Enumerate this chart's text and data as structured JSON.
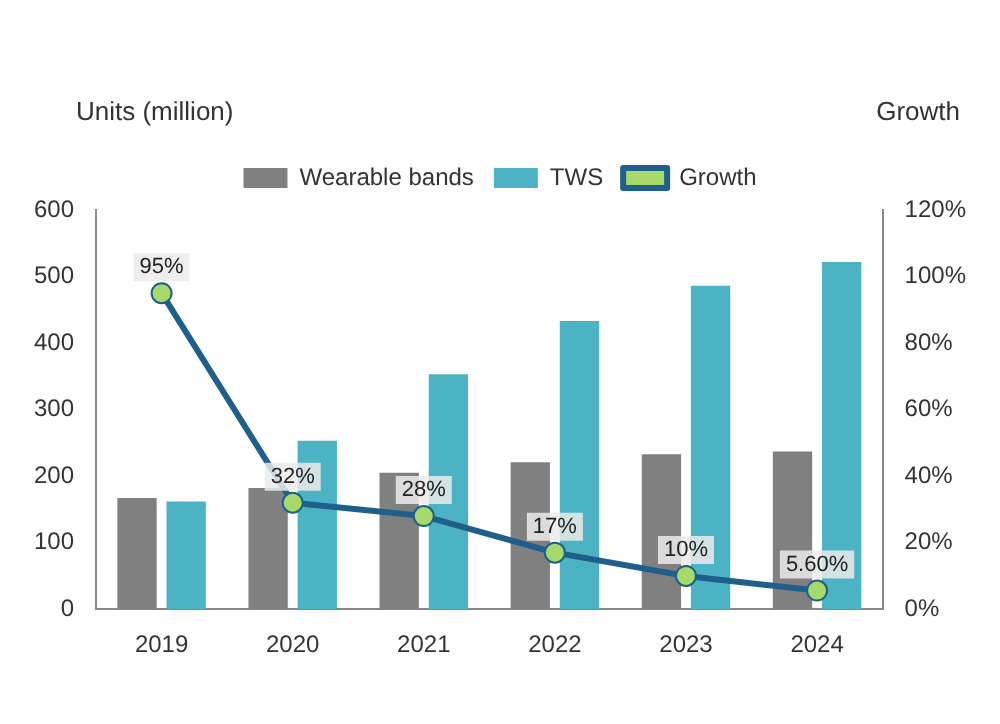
{
  "chart_data": {
    "type": "bar",
    "ylabel": "Units (million)",
    "y2label": "Growth",
    "categories": [
      "2019",
      "2020",
      "2021",
      "2022",
      "2023",
      "2024"
    ],
    "series": [
      {
        "name": "Wearable bands",
        "color": "#808080",
        "values": [
          167,
          182,
          205,
          221,
          233,
          237
        ]
      },
      {
        "name": "TWS",
        "color": "#4bb3c3",
        "values": [
          162,
          253,
          353,
          433,
          486,
          522
        ]
      },
      {
        "name": "Growth",
        "type": "line",
        "axis": "y2",
        "color": "#1f5f8b",
        "marker": "circle",
        "values": [
          95,
          32,
          28,
          17,
          10,
          5.6
        ],
        "value_labels": [
          "95%",
          "32%",
          "28%",
          "17%",
          "10%",
          "5.60%"
        ]
      }
    ],
    "ylim": [
      0,
      600
    ],
    "yticks": [
      0,
      100,
      200,
      300,
      400,
      500,
      600
    ],
    "y2lim": [
      0,
      120
    ],
    "y2ticks": [
      {
        "value": 0,
        "label": "0%"
      },
      {
        "value": 20,
        "label": "20%"
      },
      {
        "value": 40,
        "label": "40%"
      },
      {
        "value": 60,
        "label": "60%"
      },
      {
        "value": 80,
        "label": "80%"
      },
      {
        "value": 100,
        "label": "100%"
      },
      {
        "value": 120,
        "label": "120%"
      }
    ],
    "legend": "top",
    "grid": false
  }
}
